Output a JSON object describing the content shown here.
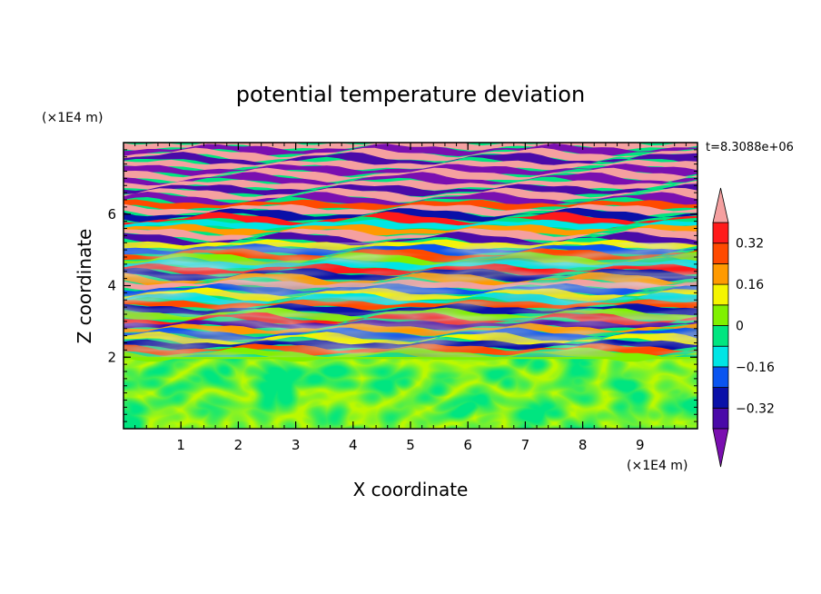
{
  "chart_data": {
    "type": "heatmap",
    "title": "potential temperature deviation",
    "xlabel": "X coordinate",
    "ylabel": "Z coordinate",
    "x_unit": "(×1E4 m)",
    "y_unit": "(×1E4 m)",
    "time_label": "t=8.3088e+06",
    "xlim": [
      0,
      10
    ],
    "ylim": [
      0,
      8
    ],
    "x_ticks": [
      1,
      2,
      3,
      4,
      5,
      6,
      7,
      8,
      9
    ],
    "y_ticks": [
      2,
      4,
      6
    ],
    "colorbar": {
      "levels": [
        -0.4,
        -0.32,
        -0.24,
        -0.16,
        -0.08,
        0,
        0.08,
        0.16,
        0.24,
        0.32,
        0.4
      ],
      "tick_labels": [
        "0.32",
        "0.16",
        "0",
        "−0.16",
        "−0.32"
      ],
      "tick_values": [
        0.32,
        0.16,
        0,
        -0.16,
        -0.32
      ],
      "colors": [
        "#7a0fb0",
        "#4a0aa8",
        "#0a10a8",
        "#0a55f0",
        "#00e5e5",
        "#00e580",
        "#80f000",
        "#f5f500",
        "#ff9a00",
        "#ff4a00",
        "#ff1a1a",
        "#f5a0a0"
      ],
      "extend": "both"
    }
  }
}
